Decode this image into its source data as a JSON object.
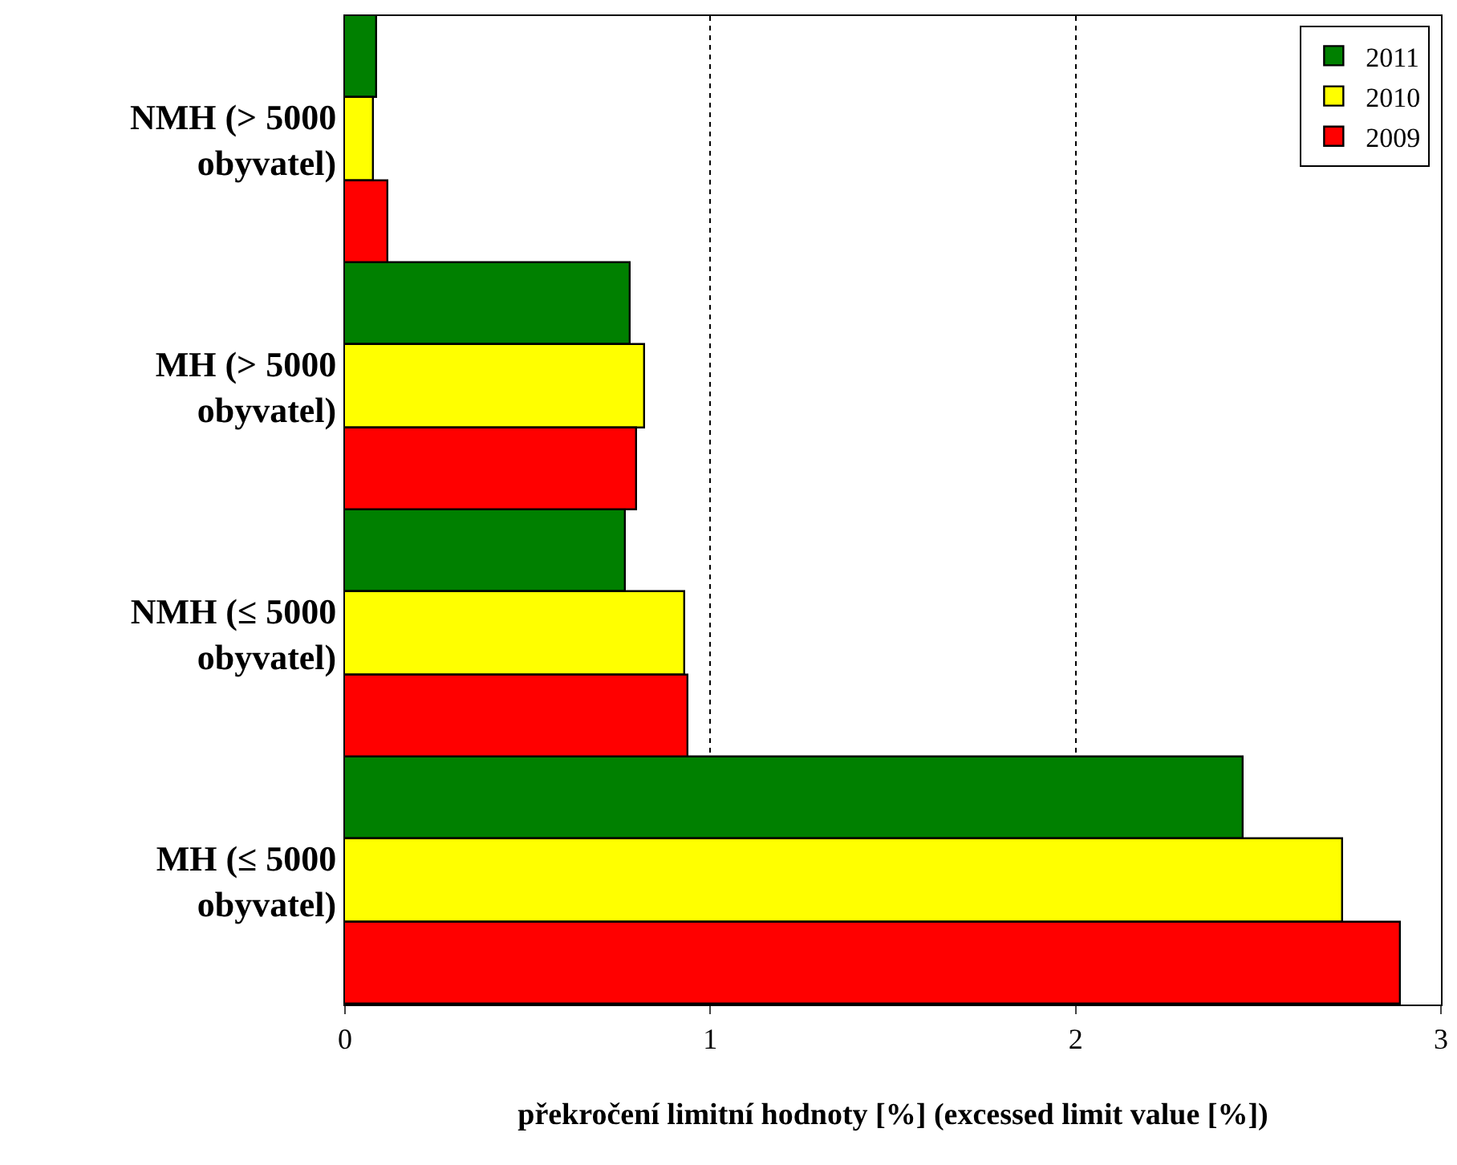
{
  "chart_data": {
    "type": "bar",
    "orientation": "horizontal",
    "xlabel": "překročení limitní hodnoty [%] (excessed limit value [%])",
    "categories": [
      "NMH (> 5000\nobyvatel)",
      "MH (> 5000\nobyvatel)",
      "NMH (≤ 5000\nobyvatel)",
      "MH (≤ 5000\nobyvatel)"
    ],
    "series": [
      {
        "name": "2011",
        "color": "#008000",
        "values": [
          0.09,
          0.78,
          0.77,
          2.46
        ]
      },
      {
        "name": "2010",
        "color": "#ffff00",
        "values": [
          0.08,
          0.82,
          0.93,
          2.73
        ]
      },
      {
        "name": "2009",
        "color": "#ff0000",
        "values": [
          0.12,
          0.8,
          0.94,
          2.89
        ]
      }
    ],
    "xlim": [
      0,
      3
    ],
    "xticks": [
      0,
      1,
      2,
      3
    ],
    "grid": "x",
    "legend": "top right"
  }
}
